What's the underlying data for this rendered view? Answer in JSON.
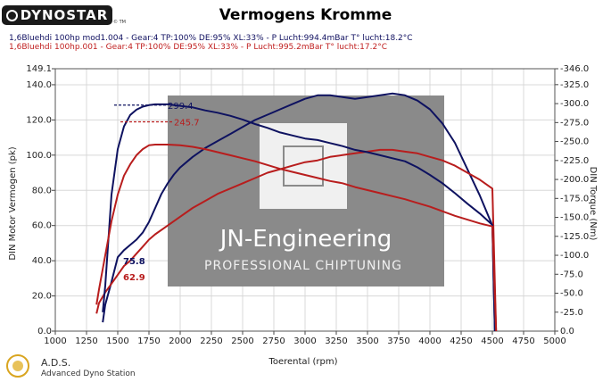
{
  "header": {
    "logo_text": "DYNOSTAR",
    "logo_tm": "© TM",
    "title": "Vermogens Kromme"
  },
  "runs": [
    "1,6Bluehdi 100hp mod1.004 - Gear:4 TP:100% DE:95% XL:33%   - P Lucht:994.4mBar T° lucht:18.2°C",
    "1,6Bluehdi 100hp.001 - Gear:4 TP:100% DE:95% XL:33%   - P Lucht:995.2mBar T° lucht:17.2°C"
  ],
  "watermark": {
    "line1": "JN-Engineering",
    "line2": "PROFESSIONAL CHIPTUNING"
  },
  "footer": {
    "brand": "A.D.S.",
    "subtitle": "Advanced Dyno Station"
  },
  "chart_data": {
    "type": "line",
    "xlabel": "Toerental (rpm)",
    "ylabel": "DIN Motor Vermogen (pk)",
    "y2label": "DIN Torque (Nm)",
    "xlim": [
      1000,
      5000
    ],
    "ylim": [
      0,
      149.1
    ],
    "y2lim": [
      0,
      346.0
    ],
    "x_ticks": [
      1000,
      1250,
      1500,
      1750,
      2000,
      2250,
      2500,
      2750,
      3000,
      3250,
      3500,
      3750,
      4000,
      4250,
      4500,
      4750,
      5000
    ],
    "y_ticks": [
      0.0,
      20.0,
      40.0,
      60.0,
      80.0,
      100.0,
      120.0,
      140.0,
      149.1
    ],
    "y2_ticks": [
      -0.0,
      -25.0,
      -50.0,
      -75.0,
      -100.0,
      -125.0,
      -150.0,
      -175.0,
      -200.0,
      -225.0,
      -250.0,
      -275.0,
      -300.0,
      -325.0,
      -346.0
    ],
    "colors": {
      "tuned": "#0e1260",
      "stock": "#b81d1d"
    },
    "series": [
      {
        "name": "",
        "kind": "power",
        "axis": "left",
        "color": "#0e1260",
        "x": [
          1380,
          1400,
          1450,
          1500,
          1550,
          1600,
          1650,
          1700,
          1750,
          1800,
          1850,
          1900,
          1950,
          2000,
          2050,
          2100,
          2200,
          2300,
          2400,
          2500,
          2600,
          2700,
          2800,
          2900,
          3000,
          3100,
          3200,
          3300,
          3400,
          3500,
          3600,
          3700,
          3800,
          3900,
          4000,
          4100,
          4200,
          4300,
          4400,
          4500,
          4520
        ],
        "y": [
          5,
          15,
          28,
          42,
          46,
          49,
          52,
          56,
          62,
          70,
          78,
          84,
          89,
          93,
          96,
          99,
          104,
          108,
          112,
          116,
          120,
          123,
          126,
          129,
          132,
          134,
          134,
          133,
          132,
          133,
          134,
          135,
          134,
          131,
          126,
          118,
          107,
          92,
          77,
          60,
          0
        ]
      },
      {
        "name": "",
        "kind": "power",
        "axis": "left",
        "color": "#b81d1d",
        "x": [
          1330,
          1350,
          1400,
          1450,
          1500,
          1550,
          1600,
          1650,
          1700,
          1750,
          1800,
          1900,
          2000,
          2100,
          2200,
          2300,
          2400,
          2500,
          2600,
          2700,
          2800,
          2900,
          3000,
          3100,
          3200,
          3300,
          3400,
          3500,
          3600,
          3700,
          3800,
          3900,
          4000,
          4100,
          4200,
          4300,
          4400,
          4500,
          4530
        ],
        "y": [
          10,
          16,
          22,
          27,
          32,
          37,
          40,
          44,
          48,
          52,
          55,
          60,
          65,
          70,
          74,
          78,
          81,
          84,
          87,
          90,
          92,
          94,
          96,
          97,
          99,
          100,
          101,
          102,
          103,
          103,
          102,
          101,
          99,
          97,
          94,
          90,
          86,
          81,
          0
        ]
      },
      {
        "name": "",
        "kind": "torque",
        "axis": "right",
        "color": "#0e1260",
        "x": [
          1380,
          1400,
          1450,
          1500,
          1550,
          1600,
          1650,
          1700,
          1750,
          1800,
          1850,
          1900,
          1950,
          2000,
          2050,
          2100,
          2200,
          2300,
          2400,
          2500,
          2600,
          2700,
          2800,
          2900,
          3000,
          3100,
          3200,
          3300,
          3400,
          3500,
          3600,
          3700,
          3800,
          3900,
          4000,
          4100,
          4200,
          4300,
          4400,
          4500,
          4520
        ],
        "y": [
          25,
          60,
          180,
          240,
          270,
          285,
          292,
          296,
          298,
          299,
          299,
          299,
          298,
          297,
          296,
          295,
          291,
          288,
          284,
          279,
          273,
          268,
          262,
          258,
          254,
          252,
          248,
          244,
          239,
          236,
          232,
          228,
          224,
          216,
          206,
          195,
          182,
          168,
          155,
          140,
          0
        ]
      },
      {
        "name": "",
        "kind": "torque",
        "axis": "right",
        "color": "#b81d1d",
        "x": [
          1330,
          1350,
          1400,
          1450,
          1500,
          1550,
          1600,
          1650,
          1700,
          1750,
          1800,
          1900,
          2000,
          2100,
          2200,
          2300,
          2400,
          2500,
          2600,
          2700,
          2800,
          2900,
          3000,
          3100,
          3200,
          3300,
          3400,
          3500,
          3600,
          3700,
          3800,
          3900,
          4000,
          4100,
          4200,
          4300,
          4400,
          4500,
          4530
        ],
        "y": [
          35,
          55,
          100,
          145,
          180,
          205,
          220,
          232,
          240,
          245,
          246,
          246,
          245,
          243,
          240,
          236,
          232,
          228,
          224,
          219,
          214,
          210,
          206,
          202,
          198,
          195,
          190,
          186,
          182,
          178,
          174,
          169,
          164,
          158,
          152,
          147,
          142,
          138,
          0
        ]
      }
    ],
    "annotations": [
      {
        "text": "299.4",
        "color": "#0e1260",
        "axis": "right",
        "x": 1900,
        "y": 298
      },
      {
        "text": "245.7",
        "color": "#b81d1d",
        "axis": "right",
        "x": 1950,
        "y": 276
      },
      {
        "text": "75.8",
        "color": "#0e1260",
        "axis": "left",
        "x": 1400,
        "y": 40
      },
      {
        "text": "62.9",
        "color": "#b81d1d",
        "axis": "left",
        "x": 1400,
        "y": 31
      }
    ]
  }
}
